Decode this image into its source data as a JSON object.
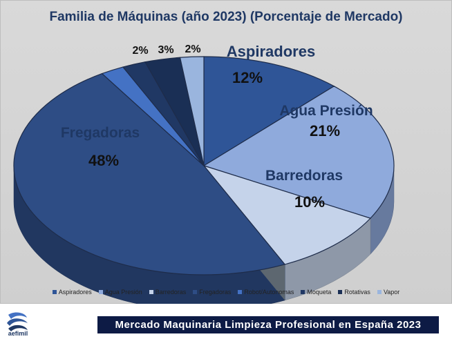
{
  "chart_data": {
    "type": "pie",
    "title": "Familia de Máquinas (año 2023) (Porcentaje  de Mercado)",
    "series": [
      {
        "name": "",
        "categories": [
          "Aspiradores",
          "Agua Presión",
          "Barredoras",
          "Fregadoras",
          "Robot/Autonomas",
          "Moqueta",
          "Rotativas",
          "Vapor"
        ],
        "values": [
          12,
          21,
          10,
          48,
          2,
          2,
          3,
          2
        ],
        "value_labels": [
          "12%",
          "21%",
          "10%",
          "48%",
          "",
          "2%",
          "3%",
          "2%"
        ],
        "colors": [
          "#2f5597",
          "#8faadc",
          "#c5d3ea",
          "#2e4d85",
          "#4472c4",
          "#203864",
          "#1a2f55",
          "#9ab5de"
        ]
      }
    ],
    "legend_position": "bottom",
    "style": "3d-pie"
  },
  "legend": {
    "items": [
      "Aspiradores",
      "Agua Presión",
      "Barredoras",
      "Fregadoras",
      "Robot/Autonomas",
      "Moqueta",
      "Rotativas",
      "Vapor"
    ]
  },
  "footer": {
    "banner_text": "Mercado Maquinaria Limpieza Profesional en España 2023",
    "logo_text": "aefimil"
  }
}
